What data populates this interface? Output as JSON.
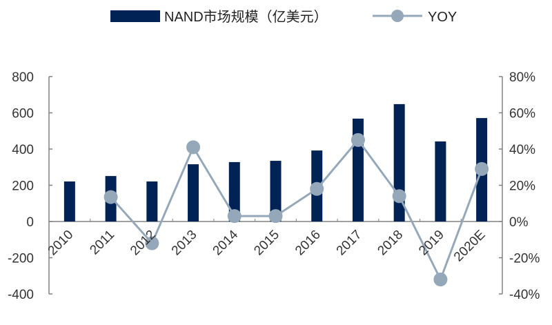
{
  "chart_data": {
    "type": "bar+line",
    "categories": [
      "2010",
      "2011",
      "2012",
      "2013",
      "2014",
      "2015",
      "2016",
      "2017",
      "2018",
      "2019",
      "2020E"
    ],
    "series": [
      {
        "name": "NAND市场规模（亿美元）",
        "type": "bar",
        "axis": "left",
        "color": "#002255",
        "values": [
          221,
          251,
          221,
          316,
          328,
          335,
          392,
          568,
          648,
          442,
          571
        ]
      },
      {
        "name": "YOY",
        "type": "line",
        "axis": "right",
        "color": "#94a8b9",
        "values": [
          null,
          13.5,
          -12,
          41,
          3,
          3,
          18,
          45,
          14,
          -32,
          29
        ]
      }
    ],
    "left_axis": {
      "ylim": [
        -400,
        800
      ],
      "ticks": [
        "800",
        "600",
        "400",
        "200",
        "0",
        "-200",
        "-400"
      ],
      "tick_values": [
        800,
        600,
        400,
        200,
        0,
        -200,
        -400
      ]
    },
    "right_axis": {
      "ylim": [
        -40,
        80
      ],
      "ticks": [
        "80%",
        "60%",
        "40%",
        "20%",
        "0%",
        "-20%",
        "-40%"
      ],
      "tick_values": [
        80,
        60,
        40,
        20,
        0,
        -20,
        -40
      ]
    },
    "legend": "top",
    "grid": false
  }
}
